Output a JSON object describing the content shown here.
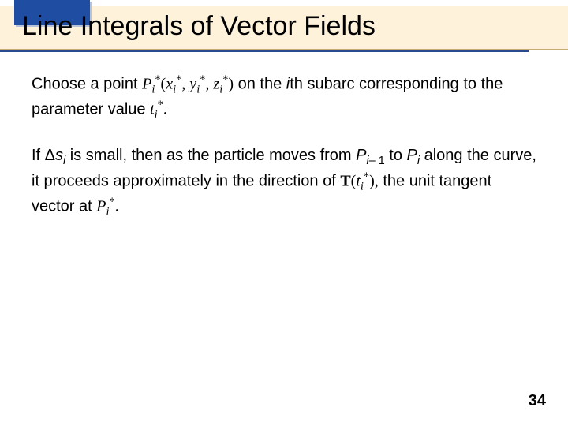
{
  "slide": {
    "title": "Line Integrals of Vector Fields",
    "pageNumber": "34",
    "colors": {
      "titleBand": "#fef2db",
      "underlineGold": "#c9a974",
      "underlineBlue": "#2a4a8f",
      "blueBox": "#1f4da1",
      "blueBoxShadow": "#b8c3d9",
      "text": "#000000",
      "background": "#ffffff"
    },
    "fonts": {
      "titleSize": 34,
      "bodySize": 20,
      "pageNumSize": 20
    }
  },
  "p1": {
    "t1": "Choose a point ",
    "pt_P": "P",
    "pt_i": "i",
    "pt_star1": "*",
    "pt_lparen": "(",
    "pt_x": "x",
    "pt_comma1": ", ",
    "pt_y": "y",
    "pt_comma2": ", ",
    "pt_z": "z",
    "pt_rparen": ")",
    "t2": " on the ",
    "ital_i": "i",
    "t3": "th subarc corresponding to the parameter value ",
    "tv_t": "t",
    "tv_i": "i",
    "tv_star": "*",
    "tv_dot": "."
  },
  "p2": {
    "t1": "If ",
    "delta": "Δ",
    "s": "s",
    "si": "i",
    "t2": " is small, then as the particle moves from ",
    "P1": "P",
    "P1i": "i",
    "P1m1": "– 1",
    "t3": " to ",
    "P2": "P",
    "P2i": "i",
    "t4": " along the curve, it proceeds approximately in the direction of ",
    "T": "T",
    "Tlp": "(",
    "Tt": "t",
    "Ti": "i",
    "Tstar": "*",
    "Trp": ")",
    "Tcomma": ",",
    "t5": " the unit tangent vector at ",
    "Pf": "P",
    "Pfi": "i",
    "Pfstar": "*",
    "Pfdot": "."
  }
}
